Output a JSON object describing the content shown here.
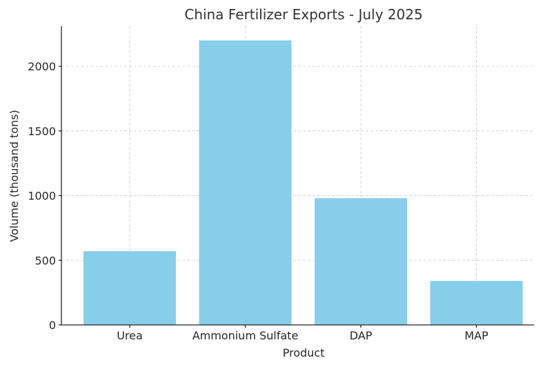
{
  "chart_data": {
    "type": "bar",
    "title": "China Fertilizer Exports - July 2025",
    "xlabel": "Product",
    "ylabel": "Volume (thousand tons)",
    "categories": [
      "Urea",
      "Ammonium Sulfate",
      "DAP",
      "MAP"
    ],
    "values": [
      570,
      2200,
      980,
      340
    ],
    "ylim": [
      0,
      2310
    ],
    "yticks": [
      0,
      500,
      1000,
      1500,
      2000
    ],
    "grid": true,
    "bar_color": "#87CEEB"
  }
}
